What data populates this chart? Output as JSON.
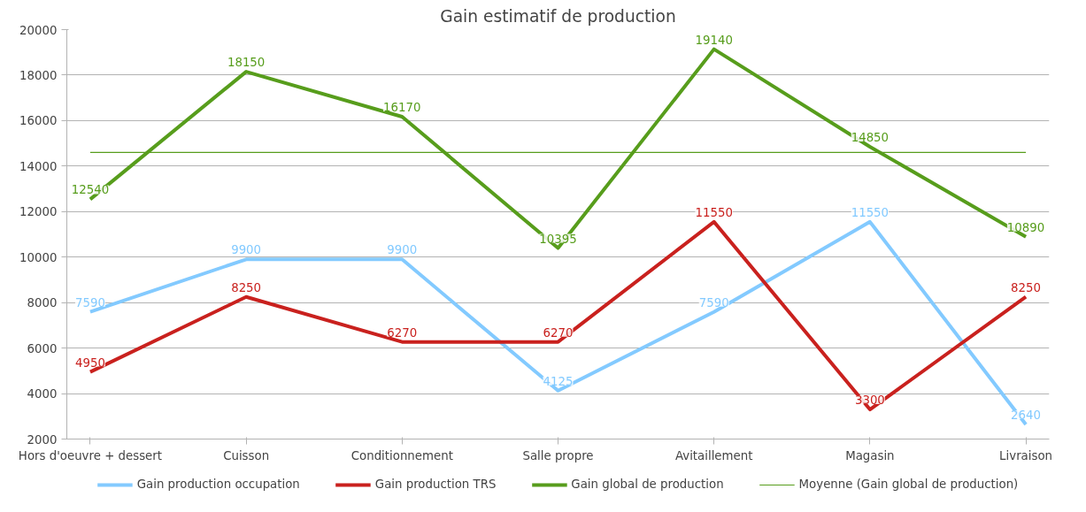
{
  "chart_data": {
    "type": "line",
    "title": "Gain estimatif de production",
    "categories": [
      "Hors d'oeuvre + dessert",
      "Cuisson",
      "Conditionnement",
      "Salle propre",
      "Avitaillement",
      "Magasin",
      "Livraison"
    ],
    "series": [
      {
        "name": "Gain production occupation",
        "color": "#83caff",
        "values": [
          7590,
          9900,
          9900,
          4125,
          7590,
          11550,
          2640
        ],
        "value_labels": [
          "7590",
          "9900",
          "9900",
          "4125",
          "7590",
          "11550",
          "2640"
        ]
      },
      {
        "name": "Gain production TRS",
        "color": "#c9211e",
        "values": [
          4950,
          8250,
          6270,
          6270,
          11550,
          3300,
          8250
        ],
        "value_labels": [
          "4950",
          "8250",
          "6270",
          "6270",
          "11550",
          "3300",
          "8250"
        ]
      },
      {
        "name": "Gain global de production",
        "color": "#579d1c",
        "values": [
          12540,
          18150,
          16170,
          10395,
          19140,
          14850,
          10890
        ],
        "value_labels": [
          "12540",
          "18150",
          "16170",
          "10395",
          "19140",
          "14850",
          "10890"
        ]
      },
      {
        "name": "Moyenne (Gain global de production)",
        "color": "#579d1c",
        "values": [
          14600,
          14600,
          14600,
          14600,
          14600,
          14600,
          14600
        ]
      }
    ],
    "ylim": [
      2000,
      20000
    ],
    "yticks": [
      2000,
      4000,
      6000,
      8000,
      10000,
      12000,
      14000,
      16000,
      18000,
      20000
    ],
    "grid": "y",
    "legend": "bottom",
    "marker": "none",
    "line_style": "solid"
  }
}
